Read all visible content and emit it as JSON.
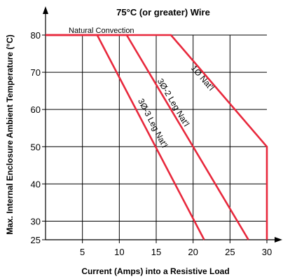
{
  "chart_data": {
    "type": "line",
    "title": "75°C (or greater) Wire",
    "xlabel": "Current (Amps) into a Resistive Load",
    "ylabel": "Max. Internal Enclosure Ambient Temperature (°C)",
    "xlim": [
      0,
      30
    ],
    "ylim": [
      25,
      80
    ],
    "grid": true,
    "xticks": [
      5,
      10,
      15,
      20,
      25,
      30
    ],
    "yticks": [
      25,
      30,
      40,
      50,
      60,
      70,
      80
    ],
    "line_color": "#e8283c",
    "annotation": "Natural Convection",
    "series": [
      {
        "name": "1Ø Nat'l",
        "x": [
          0,
          17,
          30,
          30
        ],
        "y": [
          80,
          80,
          50,
          25
        ]
      },
      {
        "name": "3Ø-2 Leg Nat'l",
        "x": [
          0,
          11,
          27.5
        ],
        "y": [
          80,
          80,
          25
        ]
      },
      {
        "name": "3Ø-3 Leg Nat'l",
        "x": [
          0,
          7,
          21.5
        ],
        "y": [
          80,
          80,
          25
        ]
      }
    ]
  }
}
